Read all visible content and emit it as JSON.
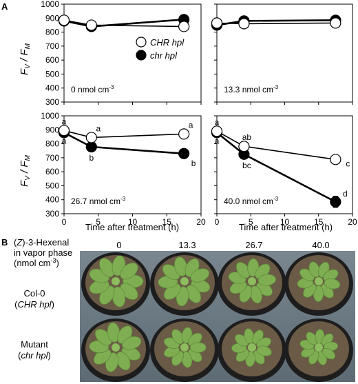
{
  "panel_labels": {
    "a": "A",
    "b": "B"
  },
  "y_axis_label": {
    "f": "F",
    "v": "V",
    "slash": " / ",
    "m": "M"
  },
  "x_axis_label": "Time after treatment (h)",
  "legend": {
    "open": {
      "label": "CHR hpl",
      "color": "#ffffff"
    },
    "filled": {
      "label": "chr hpl",
      "color": "#000000"
    }
  },
  "y_ticks": [
    "300",
    "400",
    "500",
    "600",
    "700",
    "800",
    "900",
    "1000"
  ],
  "x_ticks": [
    "0",
    "5",
    "10",
    "15",
    "20"
  ],
  "chart_data": [
    {
      "type": "line",
      "concentration": {
        "value": "0",
        "unit": "nmol cm",
        "exp": "-3"
      },
      "x": [
        0,
        4,
        17.5
      ],
      "ylim": [
        300,
        1000
      ],
      "xlim": [
        0,
        20
      ],
      "series": [
        {
          "name": "CHR hpl",
          "values": [
            885,
            850,
            840
          ],
          "letters": []
        },
        {
          "name": "chr hpl",
          "values": [
            880,
            840,
            890
          ],
          "letters": []
        }
      ]
    },
    {
      "type": "line",
      "concentration": {
        "value": "13.3",
        "unit": "nmol cm",
        "exp": "-3"
      },
      "x": [
        0,
        4,
        17.5
      ],
      "ylim": [
        300,
        1000
      ],
      "xlim": [
        0,
        20
      ],
      "series": [
        {
          "name": "CHR hpl",
          "values": [
            865,
            860,
            865
          ],
          "letters": []
        },
        {
          "name": "chr hpl",
          "values": [
            850,
            880,
            885
          ],
          "letters": []
        }
      ]
    },
    {
      "type": "line",
      "concentration": {
        "value": "26.7",
        "unit": "nmol cm",
        "exp": "-3"
      },
      "x": [
        0,
        4,
        17.5
      ],
      "ylim": [
        300,
        1000
      ],
      "xlim": [
        0,
        20
      ],
      "series": [
        {
          "name": "CHR hpl",
          "values": [
            895,
            845,
            870
          ],
          "letters": [
            "a",
            "a",
            "a"
          ]
        },
        {
          "name": "chr hpl",
          "values": [
            880,
            778,
            730
          ],
          "letters": [
            "a",
            "b",
            "b"
          ]
        }
      ]
    },
    {
      "type": "line",
      "concentration": {
        "value": "40.0",
        "unit": "nmol cm",
        "exp": "-3"
      },
      "x": [
        0,
        4,
        17.5
      ],
      "ylim": [
        300,
        1000
      ],
      "xlim": [
        0,
        20
      ],
      "series": [
        {
          "name": "CHR hpl",
          "values": [
            890,
            782,
            688
          ],
          "errors": [
            0,
            0,
            30
          ],
          "letters": [
            "a",
            "ab",
            "c"
          ]
        },
        {
          "name": "chr hpl",
          "values": [
            880,
            725,
            385
          ],
          "errors": [
            0,
            0,
            40
          ],
          "letters": [
            "a",
            "bc",
            "d"
          ]
        }
      ]
    }
  ],
  "photo_panel": {
    "header_lines": [
      "(Z)-3-Hexenal",
      "in vapor phase",
      "(nmol cm-3)"
    ],
    "z_letter": "Z",
    "unit_exp": "-3",
    "columns": [
      "0",
      "13.3",
      "26.7",
      "40.0"
    ],
    "rows": [
      {
        "name": "Col-0",
        "genotype": "CHR hpl"
      },
      {
        "name": "Mutant",
        "genotype": "chr hpl"
      }
    ],
    "colors": {
      "soil": "#6a5a46",
      "leaf": "#7fae52",
      "pot": "#1d1d1d"
    }
  }
}
